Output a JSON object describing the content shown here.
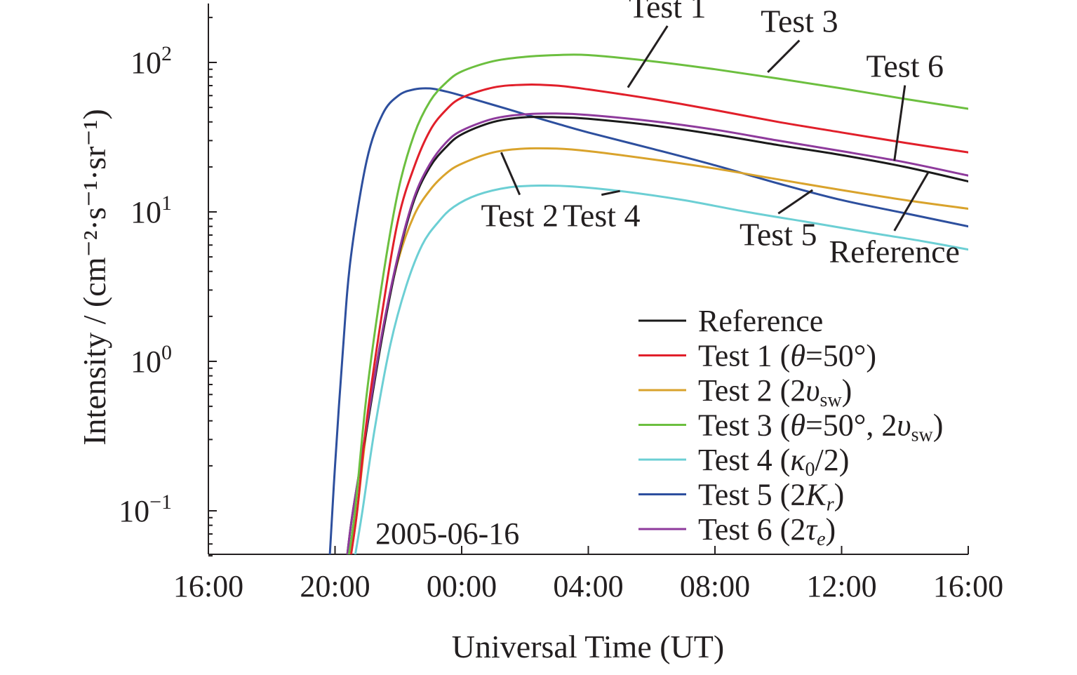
{
  "chart_data": {
    "type": "line",
    "date_annotation": "2005-06-16",
    "xlabel": "Universal Time (UT)",
    "ylabel": "Intensity / (cm⁻²·s⁻¹·sr⁻¹)",
    "y_scale": "log",
    "xlim": [
      "2005-06-16 16:00",
      "2005-06-17 16:00"
    ],
    "ylim": [
      0.05,
      250
    ],
    "x_tick_labels": [
      "16:00",
      "20:00",
      "00:00",
      "04:00",
      "08:00",
      "12:00",
      "16:00"
    ],
    "y_tick_labels": [
      {
        "base": "10",
        "exp": "−1"
      },
      {
        "base": "10",
        "exp": "0"
      },
      {
        "base": "10",
        "exp": "1"
      },
      {
        "base": "10",
        "exp": "2"
      }
    ],
    "grid": false,
    "legend_position": "bottom-right",
    "series": [
      {
        "key": "reference",
        "name": "Reference",
        "legend_parts": [
          {
            "t": "Reference"
          }
        ],
        "label": "Reference",
        "color": "#1a1a1a",
        "points": [
          [
            "2005-06-16 20:23",
            0.05
          ],
          [
            "2005-06-16 20:34",
            0.1
          ],
          [
            "2005-06-16 21:00",
            0.35
          ],
          [
            "2005-06-16 21:30",
            1.5
          ],
          [
            "2005-06-16 22:00",
            5
          ],
          [
            "2005-06-16 22:30",
            12
          ],
          [
            "2005-06-16 23:00",
            20
          ],
          [
            "2005-06-16 23:30",
            27
          ],
          [
            "2005-06-17 00:00",
            33
          ],
          [
            "2005-06-17 01:00",
            40
          ],
          [
            "2005-06-17 02:00",
            43
          ],
          [
            "2005-06-17 03:00",
            43
          ],
          [
            "2005-06-17 04:00",
            42
          ],
          [
            "2005-06-17 06:00",
            38
          ],
          [
            "2005-06-17 08:00",
            33
          ],
          [
            "2005-06-17 10:00",
            28
          ],
          [
            "2005-06-17 12:00",
            24
          ],
          [
            "2005-06-17 14:00",
            20
          ],
          [
            "2005-06-17 16:00",
            16
          ]
        ]
      },
      {
        "key": "test1",
        "name": "Test 1 (θ=50°)",
        "legend_parts": [
          {
            "t": "Test 1 ("
          },
          {
            "t": "θ",
            "i": true
          },
          {
            "t": "=50°)"
          }
        ],
        "label": "Test 1",
        "color": "#e11f2a",
        "points": [
          [
            "2005-06-16 20:30",
            0.05
          ],
          [
            "2005-06-16 20:42",
            0.1
          ],
          [
            "2005-06-16 21:00",
            0.4
          ],
          [
            "2005-06-16 21:30",
            2.2
          ],
          [
            "2005-06-16 22:00",
            9
          ],
          [
            "2005-06-16 22:30",
            20
          ],
          [
            "2005-06-16 23:00",
            35
          ],
          [
            "2005-06-16 23:30",
            48
          ],
          [
            "2005-06-17 00:00",
            58
          ],
          [
            "2005-06-17 01:00",
            68
          ],
          [
            "2005-06-17 02:00",
            71
          ],
          [
            "2005-06-17 03:00",
            70
          ],
          [
            "2005-06-17 04:00",
            66
          ],
          [
            "2005-06-17 06:00",
            57
          ],
          [
            "2005-06-17 08:00",
            48
          ],
          [
            "2005-06-17 10:00",
            40
          ],
          [
            "2005-06-17 12:00",
            34
          ],
          [
            "2005-06-17 14:00",
            29
          ],
          [
            "2005-06-17 16:00",
            25
          ]
        ]
      },
      {
        "key": "test2",
        "name": "Test 2 (2υsw)",
        "legend_parts": [
          {
            "t": "Test 2 (2"
          },
          {
            "t": "υ",
            "i": true
          },
          {
            "t": "sw",
            "sub": true
          },
          {
            "t": ")"
          }
        ],
        "label": "Test 2",
        "color": "#d9a32c",
        "points": [
          [
            "2005-06-16 20:30",
            0.05
          ],
          [
            "2005-06-16 20:42",
            0.1
          ],
          [
            "2005-06-16 21:00",
            0.35
          ],
          [
            "2005-06-16 21:30",
            1.6
          ],
          [
            "2005-06-16 22:00",
            4.8
          ],
          [
            "2005-06-16 22:30",
            9.5
          ],
          [
            "2005-06-16 23:00",
            14
          ],
          [
            "2005-06-16 23:30",
            18
          ],
          [
            "2005-06-17 00:00",
            21
          ],
          [
            "2005-06-17 01:00",
            25
          ],
          [
            "2005-06-17 02:00",
            26.5
          ],
          [
            "2005-06-17 03:00",
            26.5
          ],
          [
            "2005-06-17 04:00",
            25.5
          ],
          [
            "2005-06-17 06:00",
            22.5
          ],
          [
            "2005-06-17 08:00",
            19.5
          ],
          [
            "2005-06-17 10:00",
            16.5
          ],
          [
            "2005-06-17 12:00",
            14
          ],
          [
            "2005-06-17 14:00",
            12
          ],
          [
            "2005-06-17 16:00",
            10.5
          ]
        ]
      },
      {
        "key": "test3",
        "name": "Test 3 (θ=50°, 2υsw)",
        "legend_parts": [
          {
            "t": "Test 3 ("
          },
          {
            "t": "θ",
            "i": true
          },
          {
            "t": "=50°, 2"
          },
          {
            "t": "υ",
            "i": true
          },
          {
            "t": "sw",
            "sub": true
          },
          {
            "t": ")"
          }
        ],
        "label": "Test 3",
        "color": "#6cbf3f",
        "points": [
          [
            "2005-06-16 20:26",
            0.05
          ],
          [
            "2005-06-16 20:38",
            0.1
          ],
          [
            "2005-06-16 21:00",
            0.6
          ],
          [
            "2005-06-16 21:30",
            3.5
          ],
          [
            "2005-06-16 22:00",
            14
          ],
          [
            "2005-06-16 22:30",
            33
          ],
          [
            "2005-06-16 23:00",
            55
          ],
          [
            "2005-06-16 23:30",
            73
          ],
          [
            "2005-06-17 00:00",
            87
          ],
          [
            "2005-06-17 01:00",
            102
          ],
          [
            "2005-06-17 02:00",
            109
          ],
          [
            "2005-06-17 03:00",
            112
          ],
          [
            "2005-06-17 04:00",
            112
          ],
          [
            "2005-06-17 06:00",
            102
          ],
          [
            "2005-06-17 08:00",
            90
          ],
          [
            "2005-06-17 10:00",
            78
          ],
          [
            "2005-06-17 12:00",
            67
          ],
          [
            "2005-06-17 14:00",
            57
          ],
          [
            "2005-06-17 16:00",
            49
          ]
        ]
      },
      {
        "key": "test4",
        "name": "Test 4 (κ0/2)",
        "legend_parts": [
          {
            "t": "Test 4 ("
          },
          {
            "t": "κ",
            "i": true
          },
          {
            "t": "0",
            "sub": true
          },
          {
            "t": "/2)"
          }
        ],
        "label": "Test 4",
        "color": "#6ccfd4",
        "points": [
          [
            "2005-06-16 20:38",
            0.05
          ],
          [
            "2005-06-16 20:52",
            0.1
          ],
          [
            "2005-06-16 21:15",
            0.35
          ],
          [
            "2005-06-16 21:45",
            1.3
          ],
          [
            "2005-06-16 22:15",
            3.2
          ],
          [
            "2005-06-16 22:45",
            6
          ],
          [
            "2005-06-16 23:15",
            8.5
          ],
          [
            "2005-06-16 23:45",
            10.8
          ],
          [
            "2005-06-17 00:30",
            13
          ],
          [
            "2005-06-17 01:30",
            14.6
          ],
          [
            "2005-06-17 02:30",
            15
          ],
          [
            "2005-06-17 03:30",
            14.8
          ],
          [
            "2005-06-17 05:00",
            13.8
          ],
          [
            "2005-06-17 07:00",
            12
          ],
          [
            "2005-06-17 09:00",
            10
          ],
          [
            "2005-06-17 11:00",
            8.5
          ],
          [
            "2005-06-17 13:00",
            7.2
          ],
          [
            "2005-06-17 14:30",
            6.4
          ],
          [
            "2005-06-17 16:00",
            5.6
          ]
        ]
      },
      {
        "key": "test5",
        "name": "Test 5 (2Kr)",
        "legend_parts": [
          {
            "t": "Test 5 (2"
          },
          {
            "t": "K",
            "i": true
          },
          {
            "t": "r",
            "sub": true,
            "i": true
          },
          {
            "t": ")"
          }
        ],
        "label": "Test 5",
        "color": "#2d4f9e",
        "points": [
          [
            "2005-06-16 19:50",
            0.05
          ],
          [
            "2005-06-16 20:00",
            0.2
          ],
          [
            "2005-06-16 20:15",
            1.2
          ],
          [
            "2005-06-16 20:30",
            5
          ],
          [
            "2005-06-16 21:00",
            22
          ],
          [
            "2005-06-16 21:30",
            45
          ],
          [
            "2005-06-16 22:00",
            60
          ],
          [
            "2005-06-16 22:30",
            66
          ],
          [
            "2005-06-16 23:00",
            67
          ],
          [
            "2005-06-16 23:30",
            64
          ],
          [
            "2005-06-17 00:00",
            60
          ],
          [
            "2005-06-17 01:00",
            52
          ],
          [
            "2005-06-17 02:00",
            45
          ],
          [
            "2005-06-17 03:00",
            39
          ],
          [
            "2005-06-17 04:00",
            34
          ],
          [
            "2005-06-17 06:00",
            26.5
          ],
          [
            "2005-06-17 08:00",
            20.5
          ],
          [
            "2005-06-17 10:00",
            15.5
          ],
          [
            "2005-06-17 12:00",
            12
          ],
          [
            "2005-06-17 14:00",
            9.8
          ],
          [
            "2005-06-17 16:00",
            8
          ]
        ]
      },
      {
        "key": "test6",
        "name": "Test 6 (2τe)",
        "legend_parts": [
          {
            "t": "Test 6 (2"
          },
          {
            "t": "τ",
            "i": true
          },
          {
            "t": "e",
            "sub": true,
            "i": true
          },
          {
            "t": ")"
          }
        ],
        "label": "Test 6",
        "color": "#8e3a9c",
        "points": [
          [
            "2005-06-16 20:23",
            0.05
          ],
          [
            "2005-06-16 20:34",
            0.1
          ],
          [
            "2005-06-16 21:00",
            0.37
          ],
          [
            "2005-06-16 21:30",
            1.6
          ],
          [
            "2005-06-16 22:00",
            5.2
          ],
          [
            "2005-06-16 22:30",
            12.5
          ],
          [
            "2005-06-16 23:00",
            21
          ],
          [
            "2005-06-16 23:30",
            29
          ],
          [
            "2005-06-17 00:00",
            35
          ],
          [
            "2005-06-17 01:00",
            42
          ],
          [
            "2005-06-17 02:00",
            45
          ],
          [
            "2005-06-17 03:00",
            45.5
          ],
          [
            "2005-06-17 04:00",
            44.5
          ],
          [
            "2005-06-17 06:00",
            40.5
          ],
          [
            "2005-06-17 08:00",
            35.5
          ],
          [
            "2005-06-17 10:00",
            30
          ],
          [
            "2005-06-17 12:00",
            25.5
          ],
          [
            "2005-06-17 14:00",
            21.5
          ],
          [
            "2005-06-17 16:00",
            17.5
          ]
        ]
      }
    ],
    "annotations": [
      {
        "text": "Test 1",
        "target": [
          "2005-06-17 05:15",
          68
        ],
        "label_at": [
          "2005-06-17 06:30",
          200
        ]
      },
      {
        "text": "Test 3",
        "target": [
          "2005-06-17 09:40",
          86
        ],
        "label_at": [
          "2005-06-17 10:40",
          160
        ]
      },
      {
        "text": "Test 6",
        "target": [
          "2005-06-17 13:40",
          22
        ],
        "label_at": [
          "2005-06-17 14:00",
          80
        ]
      },
      {
        "text": "Test 2",
        "target": [
          "2005-06-17 01:15",
          25
        ],
        "label_at": [
          "2005-06-17 01:50",
          8
        ]
      },
      {
        "text": "Test 4",
        "target": [
          "2005-06-17 05:00",
          13.8
        ],
        "label_at": [
          "2005-06-17 04:25",
          8
        ]
      },
      {
        "text": "Test 5",
        "target": [
          "2005-06-17 11:05",
          14
        ],
        "label_at": [
          "2005-06-17 10:00",
          6
        ]
      },
      {
        "text": "Reference",
        "target": [
          "2005-06-17 14:45",
          18.6
        ],
        "label_at": [
          "2005-06-17 13:40",
          4.6
        ]
      }
    ]
  }
}
